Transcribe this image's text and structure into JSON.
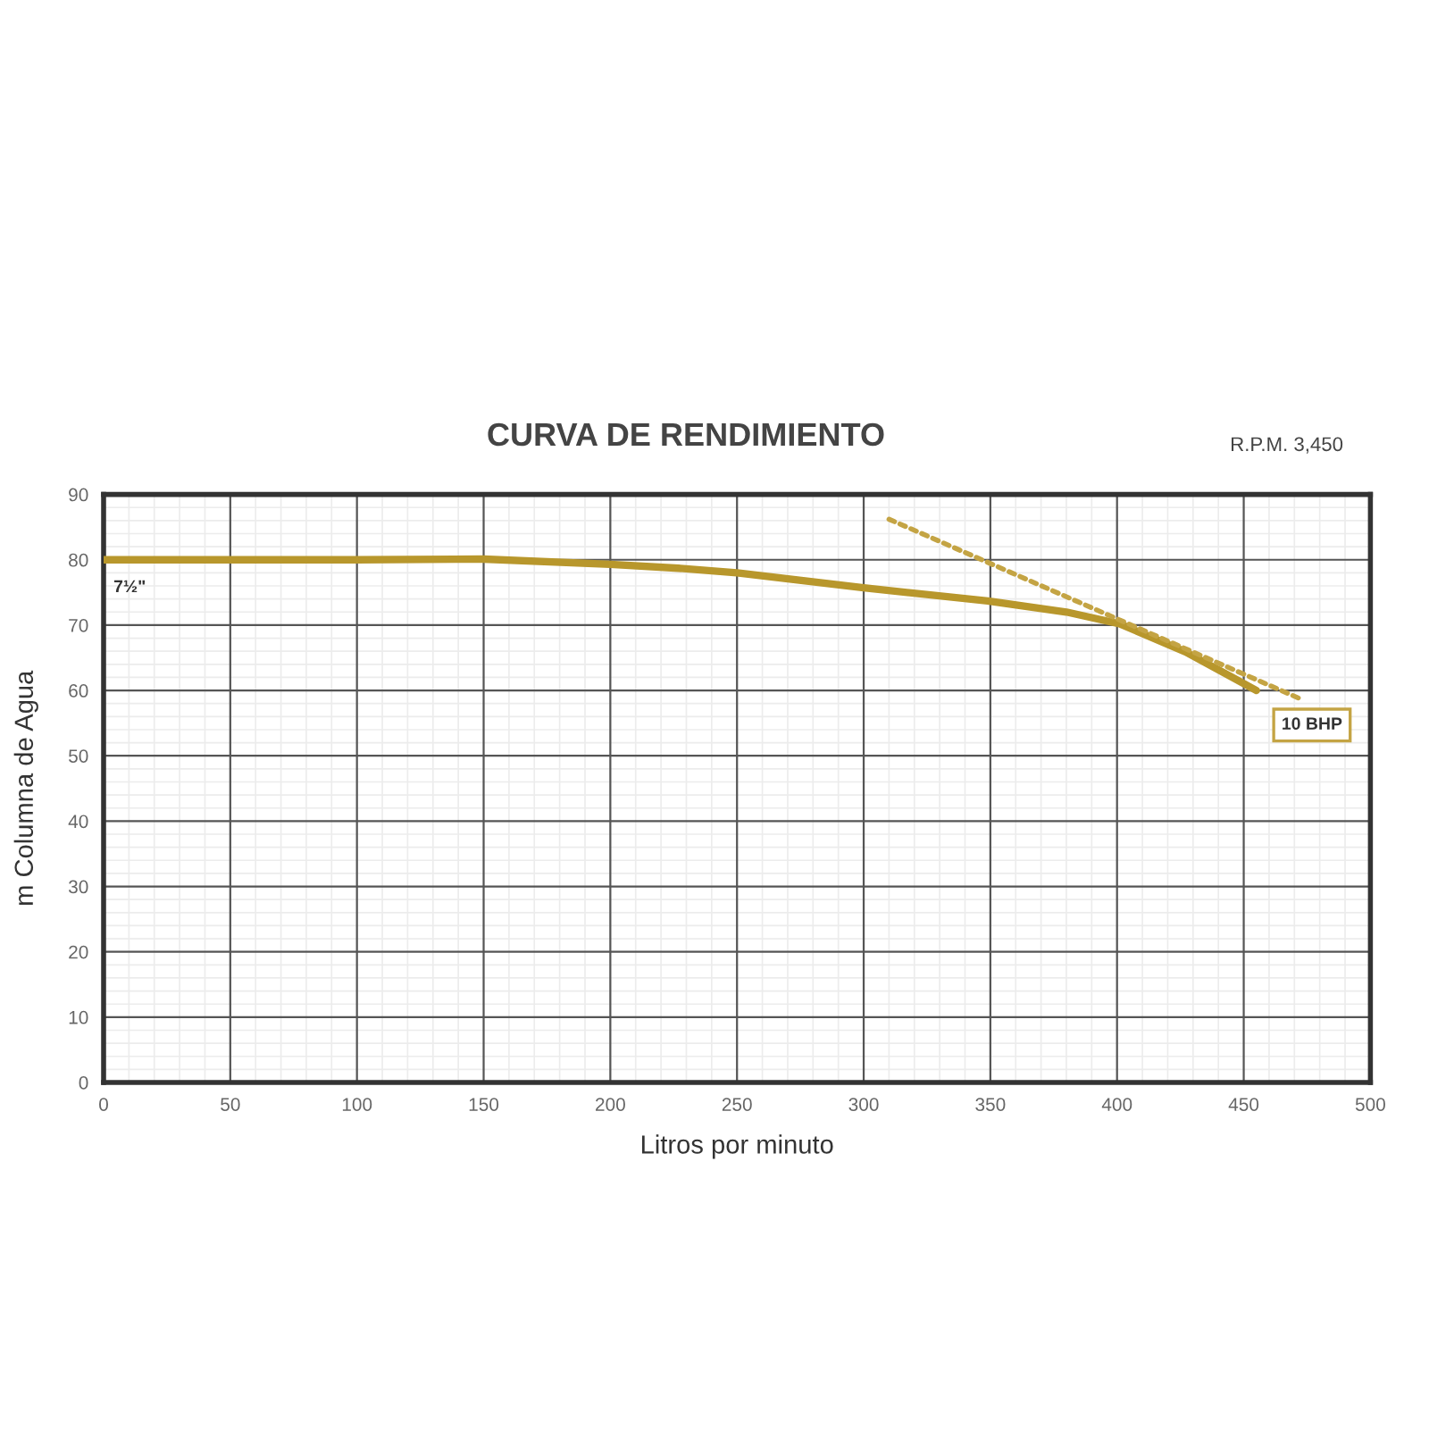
{
  "chart_data": {
    "type": "line",
    "title": "CURVA DE RENDIMIENTO",
    "xlabel": "Litros por minuto",
    "ylabel": "m Columna de Agua",
    "annotations": [
      "R.P.M. 3,450"
    ],
    "series": [
      {
        "name": "7½\"",
        "color": "#b8972c",
        "line_style": "solid",
        "x": [
          0,
          50,
          100,
          150,
          200,
          227,
          250,
          300,
          349,
          380,
          401,
          427,
          455
        ],
        "values": [
          80,
          80,
          80,
          80.1,
          79.3,
          78.7,
          78,
          75.7,
          73.7,
          72,
          70.2,
          65.9,
          60
        ]
      },
      {
        "name": "10 BHP",
        "color": "#c4a444",
        "line_style": "dotted",
        "x": [
          310,
          473
        ],
        "values": [
          86.2,
          58.6
        ]
      }
    ],
    "xlim": [
      0,
      500
    ],
    "ylim": [
      0,
      90
    ],
    "xticks": [
      0,
      50,
      100,
      150,
      200,
      250,
      300,
      350,
      400,
      450,
      500
    ],
    "yticks": [
      0,
      10,
      20,
      30,
      40,
      50,
      60,
      70,
      80,
      90
    ],
    "grid": true,
    "legend": false
  }
}
